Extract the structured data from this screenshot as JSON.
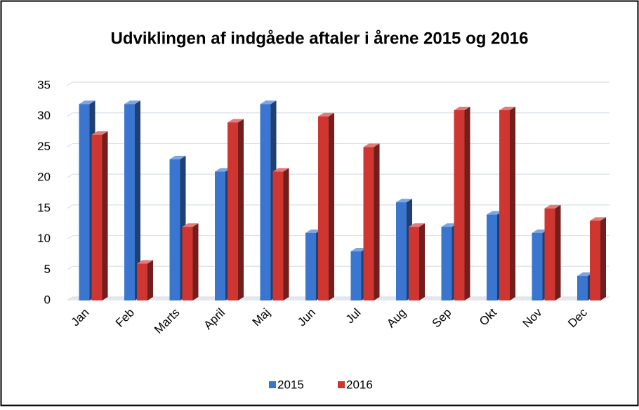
{
  "chart_data": {
    "type": "bar3d",
    "title": "Udviklingen af indgåede aftaler i årene 2015 og 2016",
    "categories": [
      "Jan",
      "Feb",
      "Marts",
      "April",
      "Maj",
      "Jun",
      "Jul",
      "Aug",
      "Sep",
      "Okt",
      "Nov",
      "Dec"
    ],
    "series": [
      {
        "name": "2015",
        "color": "#3a75cf",
        "values": [
          32,
          32,
          23,
          21,
          32,
          11,
          8,
          16,
          12,
          14,
          11,
          4
        ]
      },
      {
        "name": "2016",
        "color": "#cf3632",
        "values": [
          27,
          6,
          12,
          29,
          21,
          30,
          25,
          12,
          31,
          31,
          15,
          13
        ]
      }
    ],
    "ylim": [
      0,
      35
    ],
    "yticks": [
      0,
      5,
      10,
      15,
      20,
      25,
      30,
      35
    ],
    "grid": true,
    "legend": "bottom"
  }
}
